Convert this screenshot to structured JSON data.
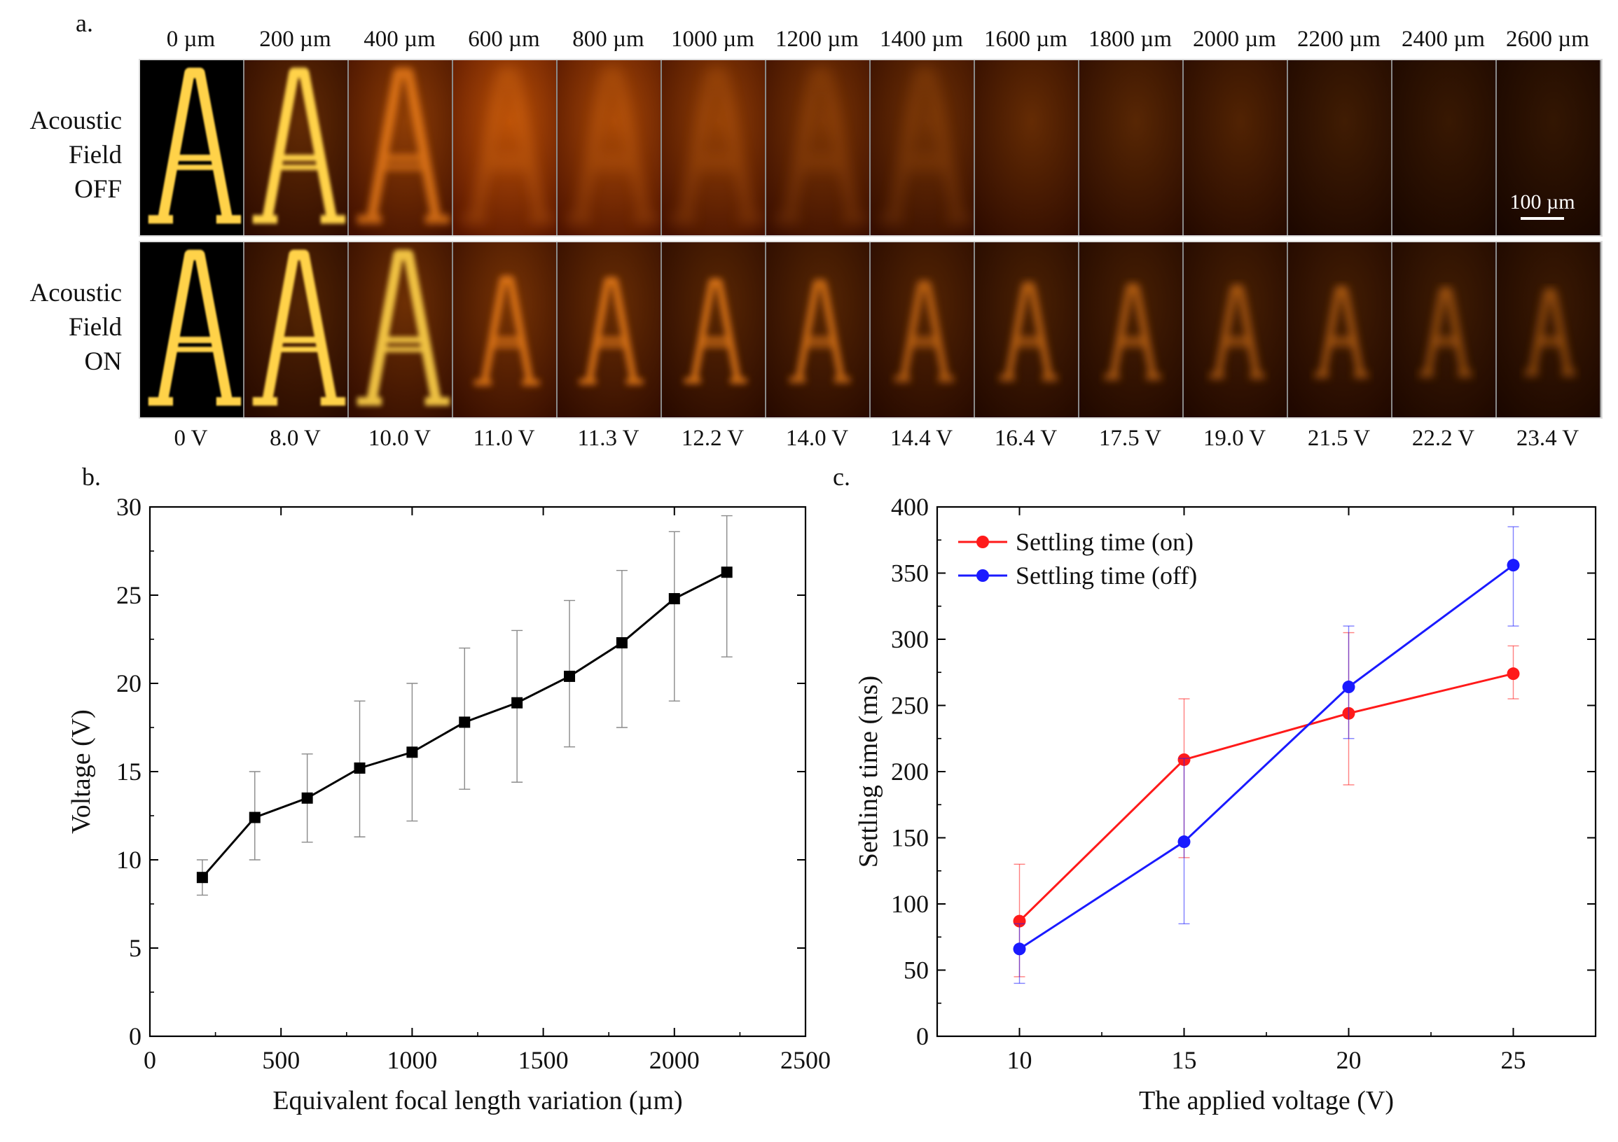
{
  "panel_a": {
    "label": "a.",
    "distances": [
      "0 µm",
      "200 µm",
      "400 µm",
      "600 µm",
      "800 µm",
      "1000 µm",
      "1200 µm",
      "1400 µm",
      "1600 µm",
      "1800 µm",
      "2000 µm",
      "2200 µm",
      "2400 µm",
      "2600 µm"
    ],
    "voltages": [
      "0 V",
      "8.0 V",
      "10.0 V",
      "11.0 V",
      "11.3 V",
      "12.2 V",
      "14.0 V",
      "14.4 V",
      "16.4 V",
      "17.5 V",
      "19.0 V",
      "21.5 V",
      "22.2 V",
      "23.4 V"
    ],
    "row_off": [
      "Acoustic",
      "Field",
      "OFF"
    ],
    "row_on": [
      "Acoustic",
      "Field",
      "ON"
    ],
    "scale_bar": "100 µm",
    "frame_sharpness_off": [
      1.0,
      0.85,
      0.55,
      0.12,
      0.08,
      0.06,
      0.04,
      0.03,
      0.02,
      0.02,
      0.01,
      0.0,
      0.0,
      0.0
    ],
    "frame_brightness_off": [
      1.0,
      0.95,
      0.9,
      0.8,
      0.7,
      0.6,
      0.5,
      0.45,
      0.4,
      0.35,
      0.32,
      0.25,
      0.22,
      0.2
    ],
    "frame_sharpness_on": [
      1.0,
      0.95,
      0.75,
      0.6,
      0.6,
      0.6,
      0.55,
      0.5,
      0.5,
      0.48,
      0.45,
      0.45,
      0.42,
      0.4
    ],
    "frame_brightness_on": [
      1.0,
      0.97,
      0.9,
      0.8,
      0.7,
      0.6,
      0.55,
      0.5,
      0.45,
      0.42,
      0.4,
      0.38,
      0.35,
      0.32
    ]
  },
  "chart_data": [
    {
      "id": "b",
      "label": "b.",
      "type": "line",
      "xlabel": "Equivalent focal length variation (µm)",
      "ylabel": "Voltage (V)",
      "xlim": [
        0,
        2500
      ],
      "ylim": [
        0,
        30
      ],
      "xticks": [
        0,
        500,
        1000,
        1500,
        2000,
        2500
      ],
      "yticks": [
        0,
        5,
        10,
        15,
        20,
        25,
        30
      ],
      "series": [
        {
          "color": "#000000",
          "marker": "square",
          "x": [
            200,
            400,
            600,
            800,
            1000,
            1200,
            1400,
            1600,
            1800,
            2000,
            2200
          ],
          "y": [
            9.0,
            12.4,
            13.5,
            15.2,
            16.1,
            17.8,
            18.9,
            20.4,
            22.3,
            24.8,
            26.3
          ],
          "err_low": [
            8.0,
            10.0,
            11.0,
            11.3,
            12.2,
            14.0,
            14.4,
            16.4,
            17.5,
            19.0,
            21.5
          ],
          "err_high": [
            10.0,
            15.0,
            16.0,
            19.0,
            20.0,
            22.0,
            23.0,
            24.7,
            26.4,
            28.6,
            29.5
          ]
        }
      ]
    },
    {
      "id": "c",
      "label": "c.",
      "type": "line",
      "xlabel": "The applied voltage (V)",
      "ylabel": "Settling time (ms)",
      "xlim": [
        7.5,
        27.5
      ],
      "ylim": [
        0,
        400
      ],
      "xticks": [
        10,
        15,
        20,
        25
      ],
      "yticks": [
        0,
        50,
        100,
        150,
        200,
        250,
        300,
        350,
        400
      ],
      "legend_position": "top-left",
      "series": [
        {
          "name": "Settling time (on)",
          "color": "#ff1a1a",
          "marker": "circle",
          "x": [
            10,
            15,
            20,
            25
          ],
          "y": [
            87,
            209,
            244,
            274
          ],
          "err_low": [
            45,
            135,
            190,
            255
          ],
          "err_high": [
            130,
            255,
            305,
            295
          ]
        },
        {
          "name": "Settling time (off)",
          "color": "#1a1aff",
          "marker": "circle",
          "x": [
            10,
            15,
            20,
            25
          ],
          "y": [
            66,
            147,
            264,
            356
          ],
          "err_low": [
            40,
            85,
            225,
            310
          ],
          "err_high": [
            85,
            210,
            310,
            385
          ]
        }
      ]
    }
  ]
}
